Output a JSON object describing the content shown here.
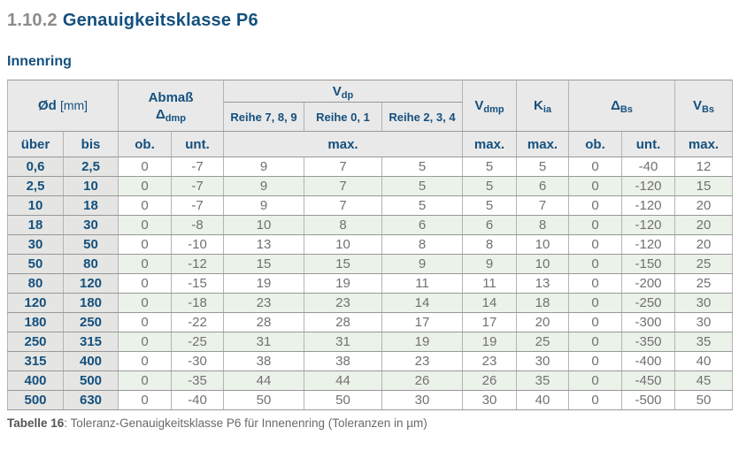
{
  "page": {
    "title_number": "1.10.2",
    "title_text": "Genauigkeitsklasse P6",
    "section_title": "Innenring",
    "caption_label": "Tabelle 16",
    "caption_text": ": Toleranz-Genauigkeitsklasse P6 für Innenenring (Toleranzen in µm)"
  },
  "colors": {
    "heading_blue": "#15507e",
    "title_number_gray": "#8c8c8c",
    "header_bg": "#e9e9e9",
    "range_column_bg": "#e5e6e3",
    "row_stripe_green": "#ebf2e9",
    "data_text_gray": "#717171"
  },
  "table": {
    "header": {
      "od_main": "Ød",
      "od_unit": "[mm]",
      "abmass_line1": "Abmaß",
      "abmass_delta": "Δ",
      "abmass_sub": "dmp",
      "vdp_main": "V",
      "vdp_sub": "dp",
      "reihe_789": "Reihe 7, 8, 9",
      "reihe_01": "Reihe 0, 1",
      "reihe_234": "Reihe 2, 3, 4",
      "vdmp_main": "V",
      "vdmp_sub": "dmp",
      "kia_main": "K",
      "kia_sub": "ia",
      "dbs_main": "Δ",
      "dbs_sub": "Bs",
      "vbs_main": "V",
      "vbs_sub": "Bs",
      "sub_row": [
        "über",
        "bis",
        "ob.",
        "unt.",
        "max.",
        "max.",
        "max.",
        "ob.",
        "unt.",
        "max."
      ]
    },
    "rows": [
      [
        "0,6",
        "2,5",
        "0",
        "-7",
        "9",
        "7",
        "5",
        "5",
        "5",
        "0",
        "-40",
        "12"
      ],
      [
        "2,5",
        "10",
        "0",
        "-7",
        "9",
        "7",
        "5",
        "5",
        "6",
        "0",
        "-120",
        "15"
      ],
      [
        "10",
        "18",
        "0",
        "-7",
        "9",
        "7",
        "5",
        "5",
        "7",
        "0",
        "-120",
        "20"
      ],
      [
        "18",
        "30",
        "0",
        "-8",
        "10",
        "8",
        "6",
        "6",
        "8",
        "0",
        "-120",
        "20"
      ],
      [
        "30",
        "50",
        "0",
        "-10",
        "13",
        "10",
        "8",
        "8",
        "10",
        "0",
        "-120",
        "20"
      ],
      [
        "50",
        "80",
        "0",
        "-12",
        "15",
        "15",
        "9",
        "9",
        "10",
        "0",
        "-150",
        "25"
      ],
      [
        "80",
        "120",
        "0",
        "-15",
        "19",
        "19",
        "11",
        "11",
        "13",
        "0",
        "-200",
        "25"
      ],
      [
        "120",
        "180",
        "0",
        "-18",
        "23",
        "23",
        "14",
        "14",
        "18",
        "0",
        "-250",
        "30"
      ],
      [
        "180",
        "250",
        "0",
        "-22",
        "28",
        "28",
        "17",
        "17",
        "20",
        "0",
        "-300",
        "30"
      ],
      [
        "250",
        "315",
        "0",
        "-25",
        "31",
        "31",
        "19",
        "19",
        "25",
        "0",
        "-350",
        "35"
      ],
      [
        "315",
        "400",
        "0",
        "-30",
        "38",
        "38",
        "23",
        "23",
        "30",
        "0",
        "-400",
        "40"
      ],
      [
        "400",
        "500",
        "0",
        "-35",
        "44",
        "44",
        "26",
        "26",
        "35",
        "0",
        "-450",
        "45"
      ],
      [
        "500",
        "630",
        "0",
        "-40",
        "50",
        "50",
        "30",
        "30",
        "40",
        "0",
        "-500",
        "50"
      ]
    ]
  }
}
